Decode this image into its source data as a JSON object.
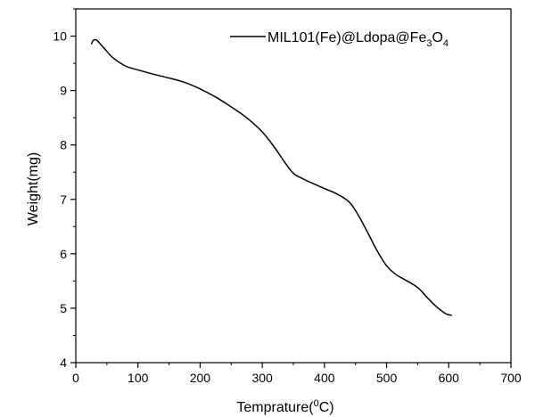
{
  "chart_data": {
    "type": "line",
    "xlabel": "Temprature(",
    "xlabel_sup": "0",
    "xlabel_unit": "C)",
    "ylabel": "Weight(mg)",
    "xlim": [
      0,
      700
    ],
    "ylim": [
      4,
      10.5
    ],
    "x_ticks": [
      "0",
      "100",
      "200",
      "300",
      "400",
      "500",
      "600",
      "700"
    ],
    "y_ticks": [
      "4",
      "5",
      "6",
      "7",
      "8",
      "9",
      "10"
    ],
    "grid": false,
    "legend_position": "top-right",
    "series": [
      {
        "name": "MIL101(Fe)@Ldopa@Fe3O4",
        "legend_parts": {
          "p1": "MIL101(Fe)@Ldopa@Fe",
          "s1": "3",
          "p2": "O",
          "s2": "4"
        },
        "color": "#000000",
        "points": [
          [
            25,
            9.85
          ],
          [
            28,
            9.92
          ],
          [
            33,
            9.93
          ],
          [
            40,
            9.85
          ],
          [
            50,
            9.72
          ],
          [
            60,
            9.6
          ],
          [
            80,
            9.45
          ],
          [
            100,
            9.38
          ],
          [
            125,
            9.3
          ],
          [
            150,
            9.23
          ],
          [
            175,
            9.15
          ],
          [
            200,
            9.03
          ],
          [
            225,
            8.88
          ],
          [
            250,
            8.7
          ],
          [
            275,
            8.5
          ],
          [
            300,
            8.24
          ],
          [
            320,
            7.95
          ],
          [
            335,
            7.7
          ],
          [
            350,
            7.48
          ],
          [
            365,
            7.38
          ],
          [
            380,
            7.3
          ],
          [
            400,
            7.2
          ],
          [
            420,
            7.1
          ],
          [
            440,
            6.95
          ],
          [
            455,
            6.7
          ],
          [
            470,
            6.38
          ],
          [
            485,
            6.05
          ],
          [
            500,
            5.78
          ],
          [
            515,
            5.62
          ],
          [
            530,
            5.52
          ],
          [
            550,
            5.38
          ],
          [
            565,
            5.2
          ],
          [
            580,
            5.03
          ],
          [
            595,
            4.9
          ],
          [
            605,
            4.87
          ]
        ]
      }
    ]
  }
}
